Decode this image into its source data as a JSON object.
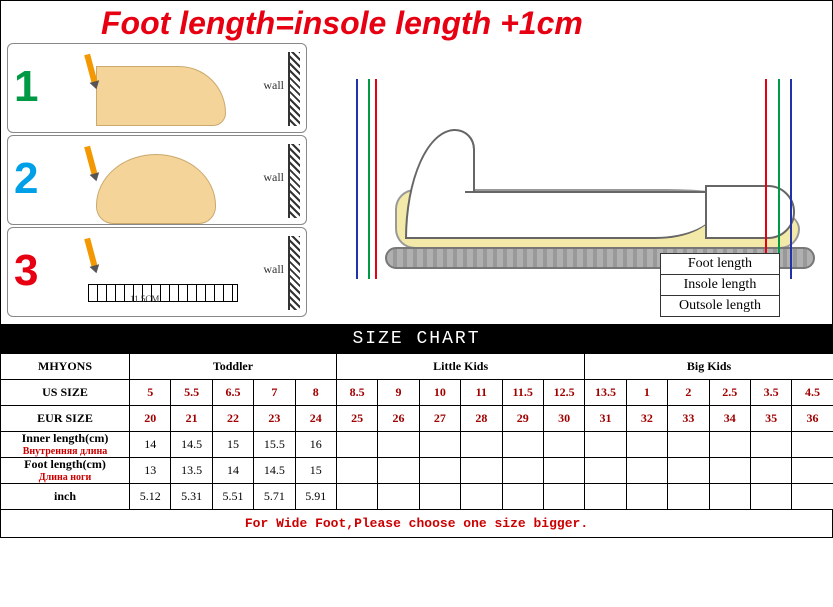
{
  "formula": "Foot length=insole length +1cm",
  "steps": {
    "wall_label": "wall",
    "measurement_example": "11.5CM"
  },
  "legend": {
    "foot": "Foot length",
    "insole": "Insole length",
    "outsole": "Outsole length"
  },
  "chart": {
    "title": "SIZE CHART",
    "brand": "MHYONS",
    "groups": [
      "Toddler",
      "Little Kids",
      "Big Kids"
    ],
    "row_labels": {
      "us": "US SIZE",
      "eur": "EUR SIZE",
      "inner": "Inner length(cm)",
      "inner_ru": "Внутренняя длина",
      "foot": "Foot length(cm)",
      "foot_ru": "Длина ноги",
      "inch": "inch"
    },
    "us": [
      "5",
      "5.5",
      "6.5",
      "7",
      "8",
      "8.5",
      "9",
      "10",
      "11",
      "11.5",
      "12.5",
      "13.5",
      "1",
      "2",
      "2.5",
      "3.5",
      "4.5"
    ],
    "eur": [
      "20",
      "21",
      "22",
      "23",
      "24",
      "25",
      "26",
      "27",
      "28",
      "29",
      "30",
      "31",
      "32",
      "33",
      "34",
      "35",
      "36"
    ],
    "inner": [
      "14",
      "14.5",
      "15",
      "15.5",
      "16",
      "",
      "",
      "",
      "",
      "",
      "",
      "",
      "",
      "",
      "",
      "",
      ""
    ],
    "foot": [
      "13",
      "13.5",
      "14",
      "14.5",
      "15",
      "",
      "",
      "",
      "",
      "",
      "",
      "",
      "",
      "",
      "",
      "",
      ""
    ],
    "inch": [
      "5.12",
      "5.31",
      "5.51",
      "5.71",
      "5.91",
      "",
      "",
      "",
      "",
      "",
      "",
      "",
      "",
      "",
      "",
      "",
      ""
    ],
    "footer": "For Wide Foot,Please choose one size bigger.",
    "colors": {
      "title_bg": "#000000",
      "title_fg": "#ffffff",
      "value_red": "#a00000",
      "ru_red": "#cc0000",
      "border": "#000000"
    },
    "col_count": 17,
    "group_spans": [
      5,
      6,
      6
    ]
  }
}
